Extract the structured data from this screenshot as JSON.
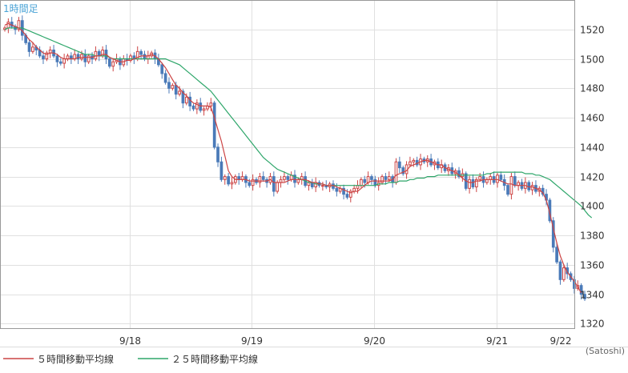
{
  "chart_data": {
    "type": "candlestick",
    "title": "1時間足",
    "unit_label": "(Satoshi)",
    "x_ticks": [
      "9/18",
      "9/19",
      "9/20",
      "9/21",
      "9/22"
    ],
    "y_ticks": [
      1320,
      1340,
      1360,
      1380,
      1400,
      1420,
      1440,
      1460,
      1480,
      1500,
      1520
    ],
    "ylim": [
      1317,
      1540
    ],
    "grid": true,
    "legend_position": "bottom-left",
    "colors": {
      "up": "#cc4444",
      "down": "#4a7ab8",
      "ma5": "#cc4444",
      "ma25": "#2ea66a",
      "grid": "#e0e0e0"
    },
    "close": [
      1521,
      1525,
      1522,
      1520,
      1526,
      1516,
      1511,
      1505,
      1508,
      1506,
      1502,
      1500,
      1504,
      1506,
      1502,
      1498,
      1497,
      1500,
      1502,
      1500,
      1503,
      1500,
      1503,
      1498,
      1502,
      1500,
      1505,
      1502,
      1506,
      1500,
      1495,
      1498,
      1500,
      1496,
      1500,
      1499,
      1502,
      1500,
      1505,
      1503,
      1500,
      1502,
      1504,
      1500,
      1496,
      1490,
      1484,
      1480,
      1482,
      1476,
      1478,
      1470,
      1474,
      1468,
      1466,
      1470,
      1465,
      1466,
      1468,
      1470,
      1440,
      1430,
      1418,
      1420,
      1415,
      1416,
      1420,
      1418,
      1420,
      1416,
      1414,
      1418,
      1416,
      1420,
      1418,
      1416,
      1420,
      1410,
      1416,
      1418,
      1420,
      1418,
      1421,
      1416,
      1418,
      1420,
      1414,
      1416,
      1413,
      1416,
      1414,
      1414,
      1413,
      1415,
      1412,
      1410,
      1412,
      1408,
      1406,
      1410,
      1412,
      1414,
      1418,
      1416,
      1420,
      1418,
      1414,
      1416,
      1420,
      1418,
      1420,
      1416,
      1430,
      1426,
      1422,
      1428,
      1430,
      1431,
      1428,
      1432,
      1430,
      1432,
      1428,
      1430,
      1426,
      1428,
      1424,
      1426,
      1422,
      1424,
      1420,
      1422,
      1412,
      1418,
      1413,
      1418,
      1420,
      1416,
      1418,
      1420,
      1416,
      1421,
      1418,
      1414,
      1408,
      1420,
      1414,
      1416,
      1412,
      1416,
      1411,
      1414,
      1410,
      1412,
      1408,
      1404,
      1390,
      1372,
      1362,
      1350,
      1358,
      1354,
      1350,
      1344,
      1346,
      1340,
      1337
    ],
    "ma5": [
      1523,
      1524,
      1523,
      1522,
      1521,
      1519,
      1516,
      1513,
      1511,
      1508,
      1506,
      1504,
      1503,
      1504,
      1504,
      1503,
      1501,
      1500,
      1500,
      1500,
      1500,
      1501,
      1501,
      1501,
      1501,
      1501,
      1502,
      1502,
      1503,
      1503,
      1501,
      1500,
      1499,
      1498,
      1498,
      1499,
      1499,
      1500,
      1501,
      1502,
      1502,
      1502,
      1503,
      1502,
      1500,
      1497,
      1494,
      1490,
      1486,
      1482,
      1480,
      1477,
      1475,
      1472,
      1470,
      1469,
      1468,
      1468,
      1468,
      1467,
      1460,
      1452,
      1444,
      1434,
      1424,
      1420,
      1418,
      1418,
      1418,
      1418,
      1417,
      1417,
      1417,
      1417,
      1417,
      1417,
      1418,
      1416,
      1416,
      1416,
      1416,
      1417,
      1418,
      1418,
      1418,
      1418,
      1418,
      1417,
      1416,
      1416,
      1415,
      1415,
      1414,
      1414,
      1414,
      1413,
      1412,
      1411,
      1410,
      1409,
      1410,
      1410,
      1412,
      1414,
      1416,
      1417,
      1417,
      1417,
      1417,
      1417,
      1417,
      1418,
      1421,
      1422,
      1423,
      1424,
      1427,
      1428,
      1429,
      1430,
      1431,
      1431,
      1430,
      1429,
      1428,
      1428,
      1426,
      1425,
      1424,
      1423,
      1421,
      1419,
      1417,
      1416,
      1416,
      1417,
      1417,
      1418,
      1418,
      1418,
      1418,
      1418,
      1417,
      1416,
      1415,
      1415,
      1414,
      1414,
      1414,
      1414,
      1413,
      1413,
      1412,
      1411,
      1409,
      1404,
      1395,
      1385,
      1375,
      1366,
      1360,
      1355,
      1352,
      1349,
      1345,
      1341
    ],
    "ma25": [
      1520,
      1521,
      1521,
      1521,
      1521,
      1521,
      1520,
      1519,
      1518,
      1517,
      1516,
      1515,
      1514,
      1513,
      1512,
      1511,
      1510,
      1509,
      1508,
      1507,
      1506,
      1505,
      1504,
      1503,
      1503,
      1503,
      1502,
      1502,
      1502,
      1502,
      1501,
      1500,
      1500,
      1500,
      1500,
      1500,
      1500,
      1500,
      1500,
      1500,
      1500,
      1500,
      1500,
      1500,
      1500,
      1500,
      1500,
      1499,
      1498,
      1497,
      1496,
      1494,
      1492,
      1490,
      1488,
      1486,
      1484,
      1482,
      1480,
      1478,
      1475,
      1472,
      1469,
      1466,
      1463,
      1460,
      1457,
      1454,
      1451,
      1448,
      1445,
      1442,
      1439,
      1436,
      1433,
      1431,
      1429,
      1427,
      1425,
      1424,
      1423,
      1422,
      1421,
      1420,
      1419,
      1418,
      1417,
      1416,
      1416,
      1415,
      1415,
      1415,
      1414,
      1414,
      1414,
      1414,
      1414,
      1414,
      1414,
      1414,
      1414,
      1414,
      1414,
      1414,
      1414,
      1414,
      1414,
      1415,
      1415,
      1415,
      1416,
      1416,
      1416,
      1417,
      1417,
      1417,
      1418,
      1418,
      1419,
      1419,
      1419,
      1420,
      1420,
      1420,
      1421,
      1421,
      1421,
      1421,
      1421,
      1421,
      1421,
      1421,
      1421,
      1421,
      1421,
      1421,
      1421,
      1421,
      1422,
      1422,
      1423,
      1423,
      1423,
      1423,
      1423,
      1423,
      1423,
      1423,
      1423,
      1422,
      1422,
      1422,
      1421,
      1421,
      1420,
      1419,
      1418,
      1416,
      1414,
      1412,
      1410,
      1408,
      1406,
      1404,
      1402,
      1400,
      1397,
      1394,
      1392
    ],
    "legend": [
      {
        "label": "５時間移動平均線",
        "color": "#cc4444"
      },
      {
        "label": "２５時間移動平均線",
        "color": "#2ea66a"
      }
    ]
  }
}
